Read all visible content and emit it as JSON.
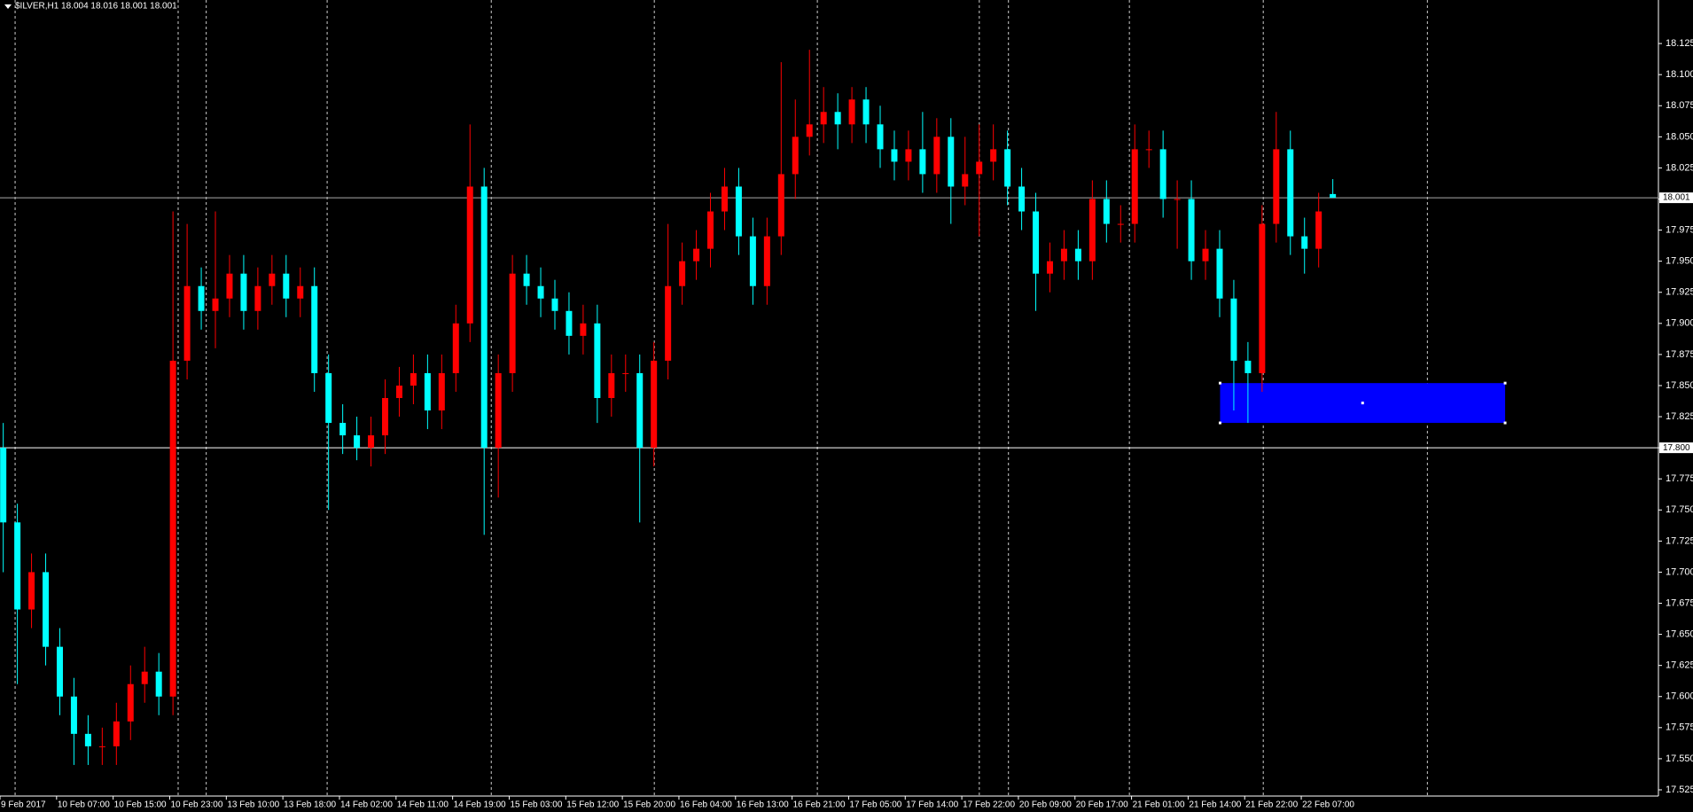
{
  "chart_data": {
    "type": "candlestick",
    "title": "$ILVER,H1  18.004 18.016 18.001 18.001",
    "up_color": "#ff0000",
    "down_color": "#00ffff",
    "ylim": [
      17.52,
      18.16
    ],
    "yticks": [
      17.525,
      {
        "value": 17.55,
        "label": "17.550"
      },
      17.575,
      {
        "value": 17.6,
        "label": "17.600"
      },
      17.625,
      {
        "value": 17.65,
        "label": "17.650"
      },
      17.675,
      {
        "value": 17.7,
        "label": "17.700"
      },
      17.725,
      {
        "value": 17.75,
        "label": "17.750"
      },
      17.775,
      {
        "value": 17.8,
        "label": "17.800"
      },
      17.825,
      {
        "value": 17.85,
        "label": "17.850"
      },
      17.875,
      {
        "value": 17.9,
        "label": "17.900"
      },
      17.925,
      {
        "value": 17.95,
        "label": "17.950"
      },
      17.975,
      {
        "value": 18,
        "label": "18.000"
      },
      18.025,
      {
        "value": 18.05,
        "label": "18.050"
      },
      18.075,
      {
        "value": 18.1,
        "label": "18.100"
      },
      18.125
    ],
    "xlabels": [
      "9 Feb 2017",
      "10 Feb 07:00",
      "10 Feb 15:00",
      "10 Feb 23:00",
      "13 Feb 10:00",
      "13 Feb 18:00",
      "14 Feb 02:00",
      "14 Feb 11:00",
      "14 Feb 19:00",
      "15 Feb 03:00",
      "15 Feb 12:00",
      "15 Feb 20:00",
      "16 Feb 04:00",
      "16 Feb 13:00",
      "16 Feb 21:00",
      "17 Feb 05:00",
      "17 Feb 14:00",
      "17 Feb 22:00",
      "20 Feb 09:00",
      "20 Feb 17:00",
      "21 Feb 01:00",
      "21 Feb 14:00",
      "21 Feb 22:00",
      "22 Feb 07:00"
    ],
    "hlines": [
      {
        "value": 18.001,
        "label": "18.001"
      },
      {
        "value": 17.8,
        "label": "17.800"
      }
    ],
    "rectangle": {
      "low": 17.82,
      "high": 17.852,
      "color": "#0000ff"
    },
    "open": [
      17.8,
      17.74,
      17.67,
      17.7,
      17.64,
      17.6,
      17.57,
      17.56,
      17.56,
      17.58,
      17.61,
      17.62,
      17.6,
      17.87,
      17.93,
      17.91,
      17.92,
      17.94,
      17.91,
      17.93,
      17.94,
      17.92,
      17.93,
      17.86,
      17.82,
      17.81,
      17.8,
      17.81,
      17.84,
      17.85,
      17.86,
      17.83,
      17.86,
      17.9,
      18.01,
      17.8,
      17.86,
      17.94,
      17.93,
      17.92,
      17.91,
      17.89,
      17.9,
      17.84,
      17.86,
      17.86,
      17.8,
      17.87,
      17.93,
      17.95,
      17.96,
      17.99,
      18.01,
      17.97,
      17.93,
      17.97,
      18.02,
      18.05,
      18.06,
      18.07,
      18.06,
      18.08,
      18.06,
      18.04,
      18.03,
      18.04,
      18.02,
      18.05,
      18.01,
      18.02,
      18.03,
      18.04,
      18.01,
      17.99,
      17.94,
      17.95,
      17.96,
      17.95,
      18.0,
      17.98,
      17.98,
      18.04,
      18.04,
      18.0,
      18.0,
      17.95,
      17.96,
      17.92,
      17.87,
      17.86,
      17.98,
      18.04,
      17.97,
      17.96,
      18.004
    ],
    "high": [
      17.82,
      17.755,
      17.715,
      17.715,
      17.655,
      17.615,
      17.585,
      17.575,
      17.595,
      17.625,
      17.64,
      17.635,
      17.99,
      17.98,
      17.945,
      17.99,
      17.955,
      17.955,
      17.945,
      17.955,
      17.955,
      17.945,
      17.945,
      17.875,
      17.835,
      17.825,
      17.825,
      17.855,
      17.865,
      17.875,
      17.875,
      17.875,
      17.915,
      18.06,
      18.025,
      17.875,
      17.955,
      17.955,
      17.945,
      17.935,
      17.925,
      17.915,
      17.915,
      17.875,
      17.875,
      17.875,
      17.885,
      17.98,
      17.965,
      17.975,
      18.005,
      18.025,
      18.025,
      17.985,
      17.985,
      18.11,
      18.08,
      18.12,
      18.09,
      18.085,
      18.09,
      18.09,
      18.075,
      18.055,
      18.055,
      18.07,
      18.065,
      18.065,
      18.05,
      18.06,
      18.06,
      18.055,
      18.025,
      18.005,
      17.965,
      17.975,
      17.975,
      18.015,
      18.015,
      17.995,
      18.06,
      18.055,
      18.055,
      18.015,
      18.015,
      17.975,
      17.975,
      17.935,
      17.885,
      17.995,
      18.07,
      18.055,
      17.985,
      18.005,
      18.016
    ],
    "low": [
      17.7,
      17.61,
      17.655,
      17.625,
      17.585,
      17.545,
      17.545,
      17.545,
      17.545,
      17.565,
      17.595,
      17.585,
      17.585,
      17.855,
      17.895,
      17.88,
      17.905,
      17.895,
      17.895,
      17.915,
      17.905,
      17.905,
      17.845,
      17.75,
      17.795,
      17.79,
      17.785,
      17.795,
      17.825,
      17.835,
      17.815,
      17.815,
      17.845,
      17.885,
      17.73,
      17.76,
      17.845,
      17.915,
      17.905,
      17.895,
      17.875,
      17.875,
      17.82,
      17.825,
      17.845,
      17.74,
      17.785,
      17.855,
      17.915,
      17.935,
      17.945,
      17.975,
      17.955,
      17.915,
      17.915,
      17.955,
      18.0,
      18.035,
      18.045,
      18.04,
      18.045,
      18.045,
      18.025,
      18.015,
      18.015,
      18.005,
      18.005,
      17.98,
      17.995,
      17.97,
      18.015,
      17.995,
      17.975,
      17.91,
      17.925,
      17.935,
      17.935,
      17.935,
      17.965,
      17.965,
      17.965,
      18.025,
      17.985,
      17.96,
      17.935,
      17.935,
      17.905,
      17.83,
      17.82,
      17.845,
      17.965,
      17.955,
      17.94,
      17.945,
      18.001
    ],
    "close": [
      17.74,
      17.67,
      17.7,
      17.64,
      17.6,
      17.57,
      17.56,
      17.56,
      17.58,
      17.61,
      17.62,
      17.6,
      17.87,
      17.93,
      17.91,
      17.92,
      17.94,
      17.91,
      17.93,
      17.94,
      17.92,
      17.93,
      17.86,
      17.82,
      17.81,
      17.8,
      17.81,
      17.84,
      17.85,
      17.86,
      17.83,
      17.86,
      17.9,
      18.01,
      17.8,
      17.86,
      17.94,
      17.93,
      17.92,
      17.91,
      17.89,
      17.9,
      17.84,
      17.86,
      17.86,
      17.8,
      17.87,
      17.93,
      17.95,
      17.96,
      17.99,
      18.01,
      17.97,
      17.93,
      17.97,
      18.02,
      18.05,
      18.06,
      18.07,
      18.06,
      18.08,
      18.06,
      18.04,
      18.03,
      18.04,
      18.02,
      18.05,
      18.01,
      18.02,
      18.03,
      18.04,
      18.01,
      17.99,
      17.94,
      17.95,
      17.96,
      17.95,
      18.0,
      17.98,
      17.98,
      18.04,
      18.04,
      18.0,
      18.0,
      17.95,
      17.96,
      17.92,
      17.87,
      17.86,
      17.98,
      18.04,
      17.97,
      17.96,
      17.99,
      18.001
    ]
  }
}
